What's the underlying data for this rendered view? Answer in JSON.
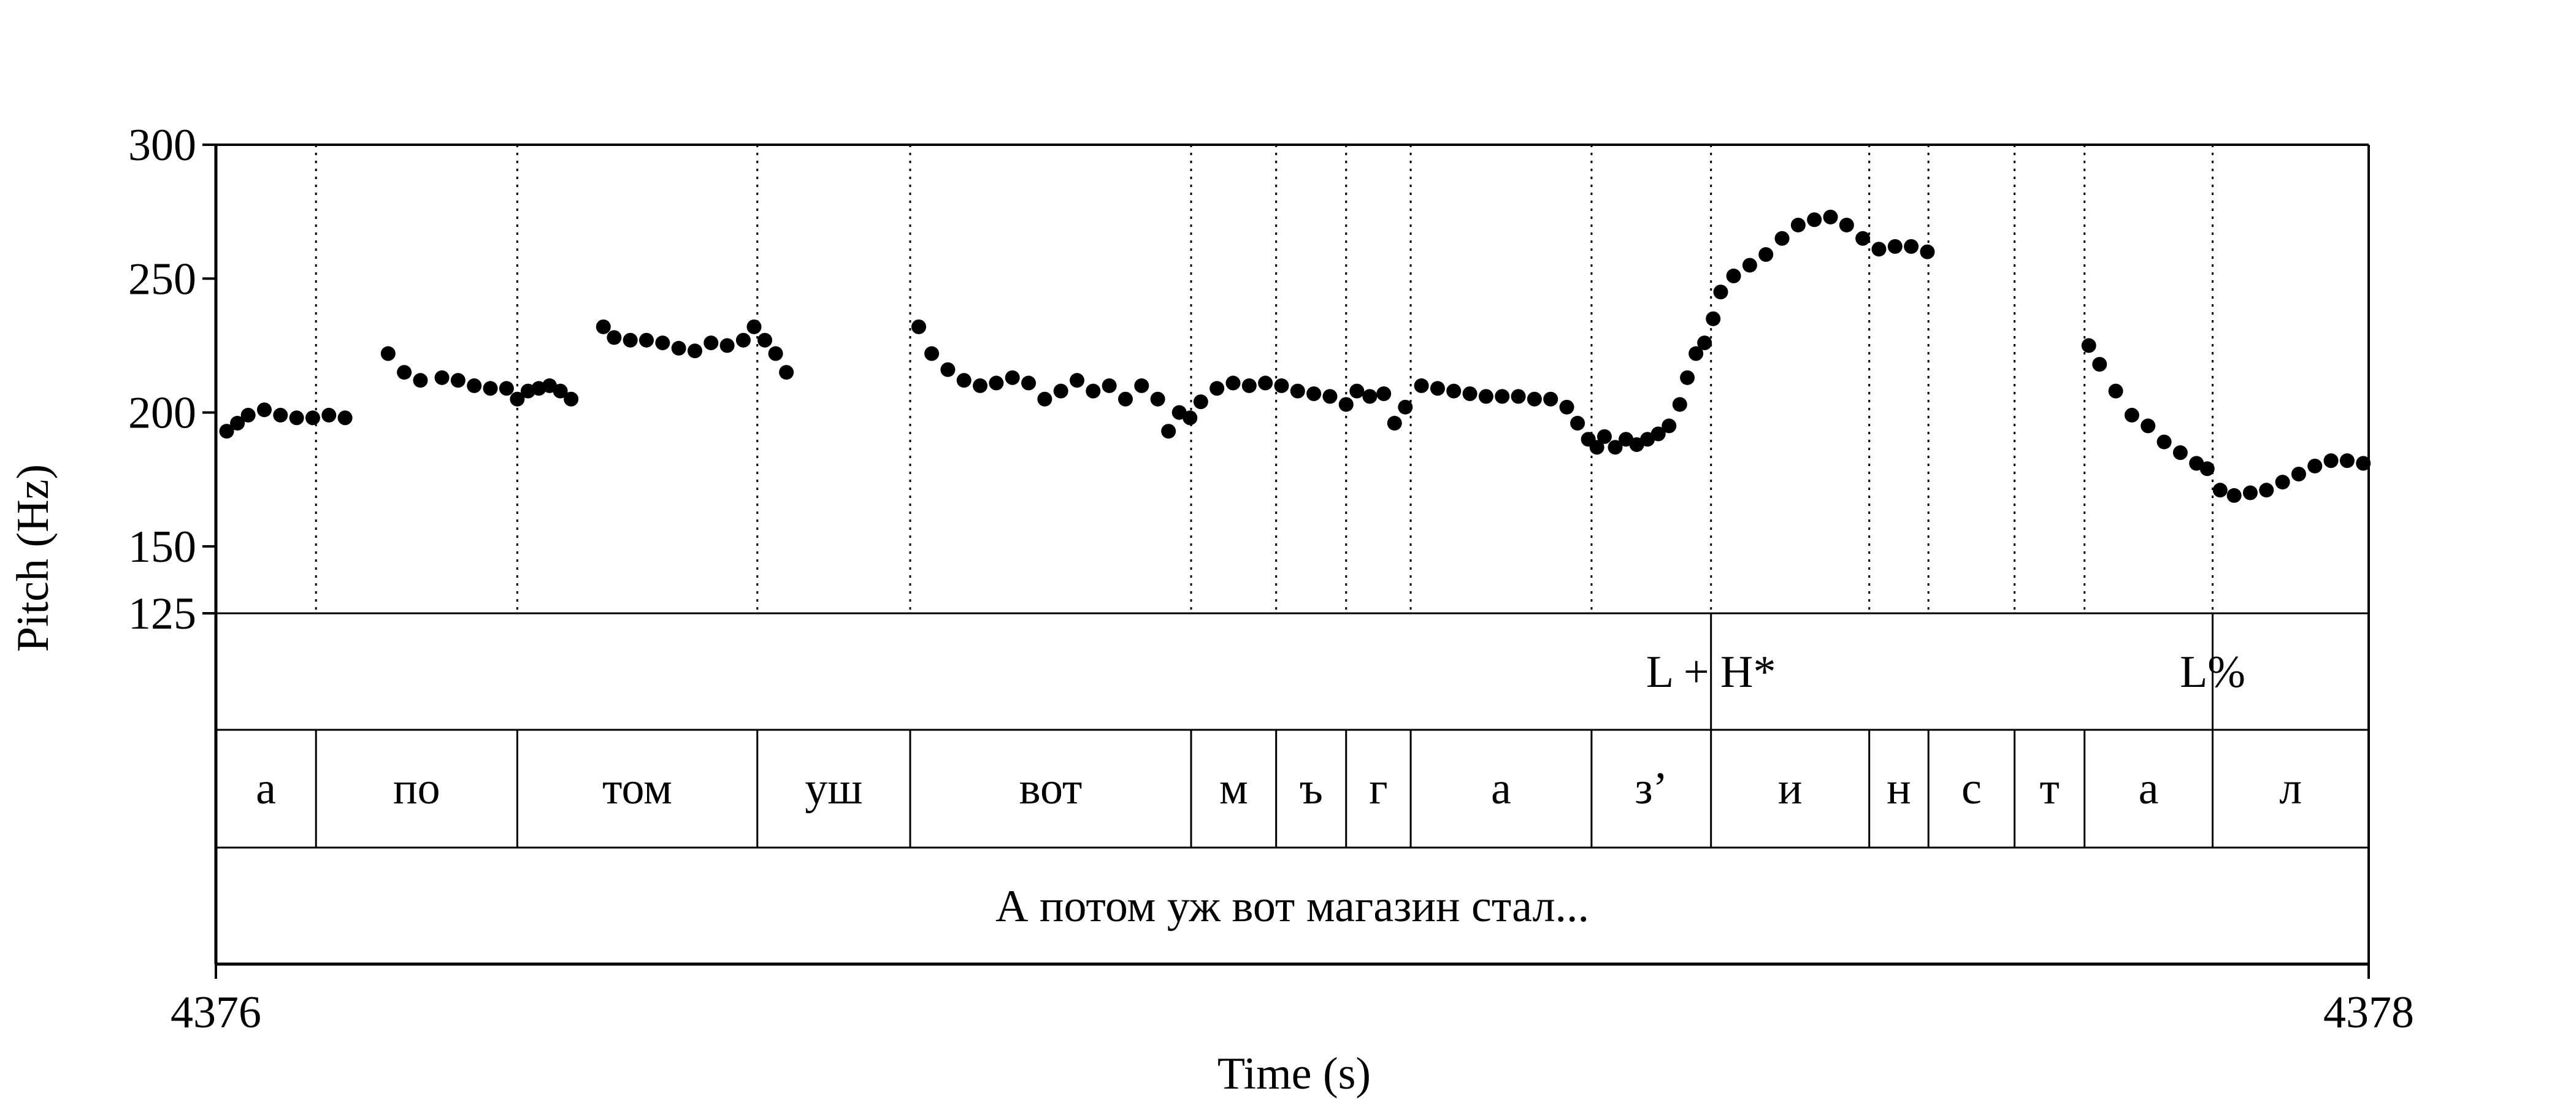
{
  "chart_data": {
    "type": "scatter",
    "title": "",
    "xlabel": "Time (s)",
    "ylabel": "Pitch (Hz)",
    "xlim": [
      4376,
      4378
    ],
    "ylim": [
      125,
      300
    ],
    "x_tick_labels": [
      "4376",
      "4378"
    ],
    "y_ticks": [
      300,
      250,
      200,
      150,
      125
    ],
    "y_tick_labels": [
      "300",
      "250",
      "200",
      "150",
      "125"
    ],
    "grid": false,
    "boundaries": [
      4376.093,
      4376.28,
      4376.503,
      4376.645,
      4376.906,
      4376.985,
      4377.05,
      4377.11,
      4377.278,
      4377.389,
      4377.536,
      4377.591,
      4377.671,
      4377.736,
      4377.855
    ],
    "tones": [
      {
        "label": "L + H*",
        "t": 4377.389
      },
      {
        "label": "L%",
        "t": 4377.855
      }
    ],
    "segments": [
      {
        "label": "а",
        "start": 4376.0,
        "end": 4376.093
      },
      {
        "label": "по",
        "start": 4376.093,
        "end": 4376.28
      },
      {
        "label": "том",
        "start": 4376.28,
        "end": 4376.503
      },
      {
        "label": "уш",
        "start": 4376.503,
        "end": 4376.645
      },
      {
        "label": "вот",
        "start": 4376.645,
        "end": 4376.906
      },
      {
        "label": "м",
        "start": 4376.906,
        "end": 4376.985
      },
      {
        "label": "ъ",
        "start": 4376.985,
        "end": 4377.05
      },
      {
        "label": "г",
        "start": 4377.05,
        "end": 4377.11
      },
      {
        "label": "а",
        "start": 4377.11,
        "end": 4377.278
      },
      {
        "label": "з’",
        "start": 4377.278,
        "end": 4377.389
      },
      {
        "label": "и",
        "start": 4377.389,
        "end": 4377.536
      },
      {
        "label": "н",
        "start": 4377.536,
        "end": 4377.591
      },
      {
        "label": "с",
        "start": 4377.591,
        "end": 4377.671
      },
      {
        "label": "т",
        "start": 4377.671,
        "end": 4377.736
      },
      {
        "label": "а",
        "start": 4377.736,
        "end": 4377.855
      },
      {
        "label": "л",
        "start": 4377.855,
        "end": 4378.0
      }
    ],
    "utterance": "А потом уж вот магазин стал...",
    "pitch_contour": [
      [
        [
          4376.01,
          193
        ],
        [
          4376.02,
          196
        ],
        [
          4376.03,
          199
        ],
        [
          4376.045,
          201
        ],
        [
          4376.06,
          199
        ],
        [
          4376.075,
          198
        ],
        [
          4376.09,
          198
        ],
        [
          4376.105,
          199
        ],
        [
          4376.12,
          198
        ]
      ],
      [
        [
          4376.16,
          222
        ],
        [
          4376.175,
          215
        ],
        [
          4376.19,
          212
        ],
        [
          4376.21,
          213
        ],
        [
          4376.225,
          212
        ],
        [
          4376.24,
          210
        ],
        [
          4376.255,
          209
        ],
        [
          4376.27,
          209
        ],
        [
          4376.28,
          205
        ],
        [
          4376.29,
          208
        ],
        [
          4376.3,
          209
        ],
        [
          4376.31,
          210
        ],
        [
          4376.32,
          208
        ],
        [
          4376.33,
          205
        ]
      ],
      [
        [
          4376.36,
          232
        ],
        [
          4376.37,
          228
        ],
        [
          4376.385,
          227
        ],
        [
          4376.4,
          227
        ],
        [
          4376.415,
          226
        ],
        [
          4376.43,
          224
        ],
        [
          4376.445,
          223
        ],
        [
          4376.46,
          226
        ],
        [
          4376.475,
          225
        ],
        [
          4376.49,
          227
        ],
        [
          4376.5,
          232
        ],
        [
          4376.51,
          227
        ],
        [
          4376.52,
          222
        ],
        [
          4376.53,
          215
        ]
      ],
      [
        [
          4376.653,
          232
        ],
        [
          4376.665,
          222
        ],
        [
          4376.68,
          216
        ],
        [
          4376.695,
          212
        ],
        [
          4376.71,
          210
        ],
        [
          4376.725,
          211
        ],
        [
          4376.74,
          213
        ],
        [
          4376.755,
          211
        ],
        [
          4376.77,
          205
        ],
        [
          4376.785,
          208
        ],
        [
          4376.8,
          212
        ],
        [
          4376.815,
          208
        ],
        [
          4376.83,
          210
        ],
        [
          4376.845,
          205
        ],
        [
          4376.86,
          210
        ],
        [
          4376.875,
          205
        ],
        [
          4376.885,
          193
        ],
        [
          4376.895,
          200
        ],
        [
          4376.905,
          198
        ],
        [
          4376.915,
          204
        ],
        [
          4376.93,
          209
        ],
        [
          4376.945,
          211
        ],
        [
          4376.96,
          210
        ],
        [
          4376.975,
          211
        ],
        [
          4376.99,
          210
        ],
        [
          4377.005,
          208
        ],
        [
          4377.02,
          207
        ],
        [
          4377.035,
          206
        ],
        [
          4377.05,
          203
        ],
        [
          4377.06,
          208
        ],
        [
          4377.072,
          206
        ],
        [
          4377.085,
          207
        ],
        [
          4377.095,
          196
        ],
        [
          4377.105,
          202
        ],
        [
          4377.12,
          210
        ],
        [
          4377.135,
          209
        ],
        [
          4377.15,
          208
        ],
        [
          4377.165,
          207
        ],
        [
          4377.18,
          206
        ],
        [
          4377.195,
          206
        ],
        [
          4377.21,
          206
        ],
        [
          4377.225,
          205
        ],
        [
          4377.24,
          205
        ],
        [
          4377.255,
          202
        ],
        [
          4377.265,
          196
        ],
        [
          4377.275,
          190
        ],
        [
          4377.283,
          187
        ],
        [
          4377.29,
          191
        ],
        [
          4377.3,
          187
        ],
        [
          4377.31,
          190
        ],
        [
          4377.32,
          188
        ],
        [
          4377.33,
          190
        ],
        [
          4377.34,
          192
        ],
        [
          4377.35,
          195
        ],
        [
          4377.36,
          203
        ],
        [
          4377.367,
          213
        ],
        [
          4377.375,
          222
        ],
        [
          4377.383,
          226
        ],
        [
          4377.391,
          235
        ],
        [
          4377.398,
          245
        ],
        [
          4377.41,
          251
        ],
        [
          4377.425,
          255
        ],
        [
          4377.44,
          259
        ],
        [
          4377.455,
          265
        ],
        [
          4377.47,
          270
        ],
        [
          4377.485,
          272
        ],
        [
          4377.5,
          273
        ],
        [
          4377.515,
          270
        ],
        [
          4377.53,
          265
        ],
        [
          4377.545,
          261
        ],
        [
          4377.56,
          262
        ],
        [
          4377.575,
          262
        ],
        [
          4377.59,
          260
        ]
      ],
      [
        [
          4377.74,
          225
        ],
        [
          4377.75,
          218
        ],
        [
          4377.765,
          208
        ],
        [
          4377.78,
          199
        ],
        [
          4377.795,
          195
        ],
        [
          4377.81,
          189
        ],
        [
          4377.825,
          185
        ],
        [
          4377.84,
          181
        ],
        [
          4377.85,
          179
        ]
      ],
      [
        [
          4377.862,
          171
        ],
        [
          4377.875,
          169
        ],
        [
          4377.89,
          170
        ],
        [
          4377.905,
          171
        ],
        [
          4377.92,
          174
        ],
        [
          4377.935,
          177
        ],
        [
          4377.95,
          180
        ],
        [
          4377.965,
          182
        ],
        [
          4377.98,
          182
        ],
        [
          4377.995,
          181
        ]
      ]
    ]
  }
}
